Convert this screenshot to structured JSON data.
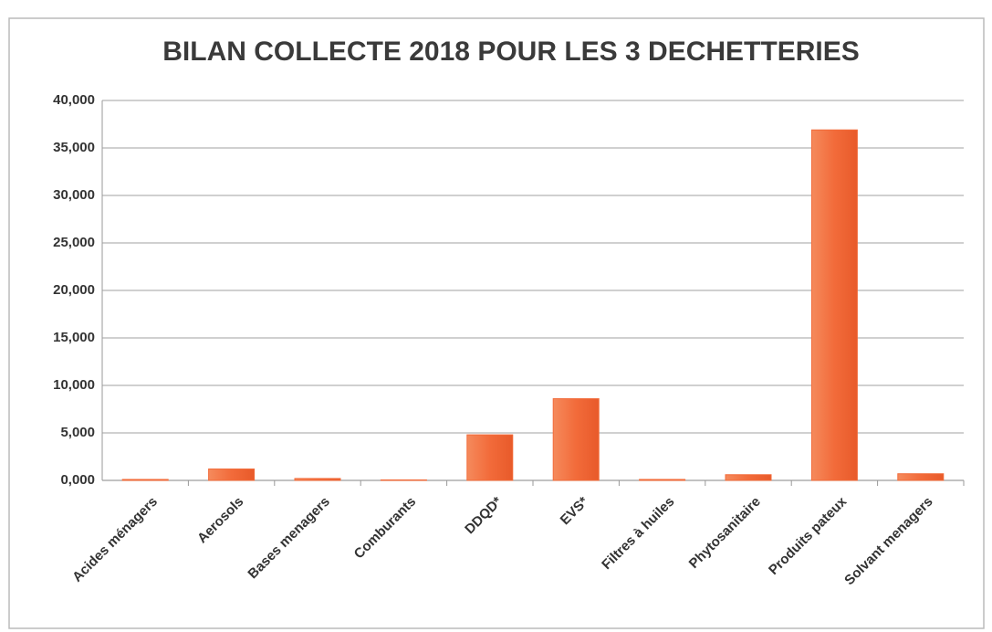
{
  "chart_data": {
    "type": "bar",
    "title": "BILAN COLLECTE 2018 POUR LES 3 DECHETTERIES",
    "categories": [
      "Acides ménagers",
      "Aerosols",
      "Bases menagers",
      "Comburants",
      "DDQD*",
      "EVS*",
      "Filtres à huiles",
      "Phytosanitaire",
      "Produits pateux",
      "Solvant menagers"
    ],
    "values": [
      100,
      1200,
      200,
      50,
      4800,
      8600,
      100,
      600,
      36900,
      700
    ],
    "color": "#f26b3a",
    "ylim": [
      0,
      40000
    ],
    "yticks": [
      {
        "value": 0,
        "label": "0,000"
      },
      {
        "value": 5000,
        "label": "5,000"
      },
      {
        "value": 10000,
        "label": "10,000"
      },
      {
        "value": 15000,
        "label": "15,000"
      },
      {
        "value": 20000,
        "label": "20,000"
      },
      {
        "value": 25000,
        "label": "25,000"
      },
      {
        "value": 30000,
        "label": "30,000"
      },
      {
        "value": 35000,
        "label": "35,000"
      },
      {
        "value": 40000,
        "label": "40,000"
      }
    ],
    "grid": true
  }
}
